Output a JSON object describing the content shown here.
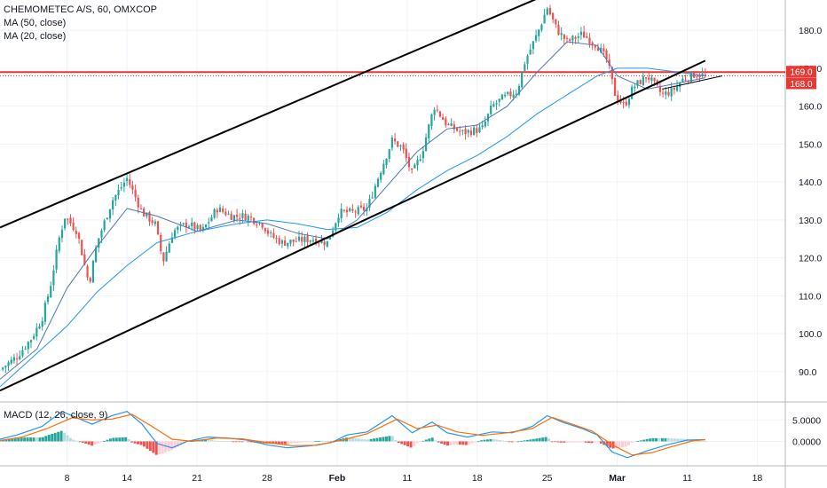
{
  "header": {
    "title": "CHEMOMETEC A/S, 60, OMXCOP",
    "indicators": [
      "MA (50, close)",
      "MA (20, close)"
    ],
    "macd_label": "MACD (12, 26, close, 9)"
  },
  "colors": {
    "up": "#26a69a",
    "down": "#ef5350",
    "ma50": "#2196f3",
    "ma20": "#4a78b8",
    "channel": "#000000",
    "level": "#e53935",
    "macd_line": "#2196f3",
    "signal_line": "#ff6d00",
    "hist_up": "#26a69a",
    "hist_up_weak": "#b2dfdb",
    "hist_down": "#ef5350",
    "hist_down_weak": "#ffcdd2"
  },
  "chart_data": {
    "type": "candlestick",
    "symbol": "CHEMOMETEC A/S",
    "interval": "60",
    "exchange": "OMXCOP",
    "x_ticks": [
      "8",
      "14",
      "21",
      "28",
      "Feb",
      "11",
      "18",
      "25",
      "Mar",
      "11",
      "18"
    ],
    "x_tick_days": [
      8,
      14,
      21,
      28,
      35,
      42,
      49,
      56,
      63,
      70,
      77
    ],
    "x_range": [
      1.3,
      79.8
    ],
    "y_ticks": [
      90.0,
      100.0,
      110.0,
      120.0,
      130.0,
      140.0,
      150.0,
      160.0,
      170.0,
      180.0
    ],
    "y_range": [
      82,
      188
    ],
    "price_path": [
      [
        1.3,
        90.5
      ],
      [
        3.0,
        94
      ],
      [
        4.5,
        99
      ],
      [
        5.5,
        104
      ],
      [
        6.3,
        112
      ],
      [
        7.2,
        125
      ],
      [
        7.8,
        131
      ],
      [
        9.0,
        127
      ],
      [
        10.2,
        113
      ],
      [
        11.0,
        124
      ],
      [
        12.5,
        135
      ],
      [
        14.0,
        141
      ],
      [
        15.5,
        132
      ],
      [
        16.8,
        129
      ],
      [
        17.6,
        119
      ],
      [
        18.6,
        127
      ],
      [
        20.0,
        129
      ],
      [
        21.5,
        127
      ],
      [
        23.0,
        133
      ],
      [
        24.5,
        131
      ],
      [
        26.0,
        131
      ],
      [
        27.5,
        129
      ],
      [
        28.3,
        126
      ],
      [
        29.5,
        124
      ],
      [
        31.0,
        124.5
      ],
      [
        32.5,
        125
      ],
      [
        34.0,
        124
      ],
      [
        35.2,
        132
      ],
      [
        36.5,
        132
      ],
      [
        38.0,
        133
      ],
      [
        39.2,
        142
      ],
      [
        40.5,
        151
      ],
      [
        41.5,
        149
      ],
      [
        42.5,
        142
      ],
      [
        43.5,
        148
      ],
      [
        44.7,
        160
      ],
      [
        46.0,
        155
      ],
      [
        47.5,
        153
      ],
      [
        49.5,
        154
      ],
      [
        50.5,
        160
      ],
      [
        51.5,
        162
      ],
      [
        53.0,
        164
      ],
      [
        53.8,
        172
      ],
      [
        55.0,
        179
      ],
      [
        56.0,
        186
      ],
      [
        57.0,
        180
      ],
      [
        58.0,
        177
      ],
      [
        59.5,
        179
      ],
      [
        61.0,
        176
      ],
      [
        62.0,
        172
      ],
      [
        62.8,
        163
      ],
      [
        63.7,
        160
      ],
      [
        64.6,
        165
      ],
      [
        66.0,
        168
      ],
      [
        67.5,
        163
      ],
      [
        68.5,
        164
      ],
      [
        69.5,
        167
      ],
      [
        70.8,
        168.5
      ],
      [
        71.8,
        168
      ]
    ],
    "ma50_path": [
      [
        1.3,
        86
      ],
      [
        8.0,
        102
      ],
      [
        11.0,
        111
      ],
      [
        14.0,
        118
      ],
      [
        17.0,
        124
      ],
      [
        21.0,
        127
      ],
      [
        25.0,
        129
      ],
      [
        28.0,
        130
      ],
      [
        31.0,
        129
      ],
      [
        34.0,
        127.5
      ],
      [
        37.0,
        128
      ],
      [
        40.0,
        132
      ],
      [
        43.0,
        138
      ],
      [
        46.0,
        143
      ],
      [
        49.0,
        147
      ],
      [
        52.0,
        152
      ],
      [
        55.0,
        158
      ],
      [
        58.0,
        163
      ],
      [
        61.0,
        168
      ],
      [
        63.0,
        170
      ],
      [
        66.0,
        170
      ],
      [
        69.0,
        169
      ],
      [
        71.8,
        168
      ]
    ],
    "ma20_path": [
      [
        1.3,
        88
      ],
      [
        5.0,
        96
      ],
      [
        8.0,
        112
      ],
      [
        11.0,
        123
      ],
      [
        14.0,
        133
      ],
      [
        17.0,
        131
      ],
      [
        21.0,
        127
      ],
      [
        25.0,
        130
      ],
      [
        28.0,
        129
      ],
      [
        31.0,
        126.5
      ],
      [
        34.0,
        125
      ],
      [
        37.0,
        130
      ],
      [
        40.0,
        139
      ],
      [
        43.0,
        148
      ],
      [
        46.0,
        154
      ],
      [
        49.0,
        155
      ],
      [
        52.0,
        160
      ],
      [
        55.0,
        169
      ],
      [
        58.0,
        177
      ],
      [
        61.0,
        176
      ],
      [
        63.0,
        168
      ],
      [
        66.0,
        164.5
      ],
      [
        69.0,
        166
      ],
      [
        71.8,
        167.5
      ]
    ],
    "channel_upper": [
      [
        1.3,
        128
      ],
      [
        61.8,
        196
      ]
    ],
    "channel_lower": [
      [
        1.3,
        85
      ],
      [
        71.8,
        172
      ]
    ],
    "support_line": [
      [
        67.5,
        164.5
      ],
      [
        73.5,
        168
      ]
    ],
    "levels": [
      {
        "value": 169.0,
        "label": "169.0"
      },
      {
        "value": 168.0,
        "label": "168.0"
      }
    ],
    "macd": {
      "y_ticks": [
        5.0,
        0.0
      ],
      "y_tick_labels": [
        "5.0000",
        "0.0000"
      ],
      "y_range": [
        -5.5,
        9.0
      ],
      "macd_path": [
        [
          1.3,
          0.5
        ],
        [
          3.0,
          1.5
        ],
        [
          5.5,
          3.5
        ],
        [
          7.5,
          7.0
        ],
        [
          9.0,
          5.5
        ],
        [
          10.5,
          4.0
        ],
        [
          12.5,
          6.0
        ],
        [
          14.0,
          7.0
        ],
        [
          15.5,
          4.0
        ],
        [
          17.0,
          -0.5
        ],
        [
          18.5,
          -1.5
        ],
        [
          20.0,
          0.0
        ],
        [
          22.0,
          1.0
        ],
        [
          24.0,
          0.8
        ],
        [
          26.0,
          0.3
        ],
        [
          28.0,
          -0.8
        ],
        [
          30.0,
          -1.5
        ],
        [
          32.5,
          -1.0
        ],
        [
          34.5,
          -0.2
        ],
        [
          36.0,
          1.5
        ],
        [
          38.0,
          2.2
        ],
        [
          40.5,
          6.0
        ],
        [
          42.5,
          2.0
        ],
        [
          44.5,
          4.5
        ],
        [
          46.0,
          2.0
        ],
        [
          48.0,
          1.0
        ],
        [
          50.5,
          2.2
        ],
        [
          52.5,
          2.0
        ],
        [
          54.5,
          3.5
        ],
        [
          56.0,
          6.0
        ],
        [
          57.5,
          4.5
        ],
        [
          59.5,
          3.0
        ],
        [
          61.0,
          1.5
        ],
        [
          62.5,
          -2.5
        ],
        [
          64.0,
          -3.8
        ],
        [
          66.0,
          -2.2
        ],
        [
          68.0,
          -0.8
        ],
        [
          70.0,
          0.3
        ],
        [
          71.8,
          0.4
        ]
      ],
      "signal_path": [
        [
          1.3,
          0.2
        ],
        [
          3.5,
          1.0
        ],
        [
          6.0,
          3.0
        ],
        [
          8.5,
          5.5
        ],
        [
          10.5,
          5.0
        ],
        [
          12.5,
          5.2
        ],
        [
          14.5,
          6.3
        ],
        [
          16.5,
          3.5
        ],
        [
          18.5,
          0.5
        ],
        [
          20.5,
          0.0
        ],
        [
          23.0,
          0.8
        ],
        [
          25.5,
          0.6
        ],
        [
          28.0,
          -0.3
        ],
        [
          30.5,
          -1.0
        ],
        [
          33.0,
          -0.9
        ],
        [
          35.5,
          0.3
        ],
        [
          38.0,
          1.8
        ],
        [
          41.0,
          5.2
        ],
        [
          43.0,
          3.0
        ],
        [
          45.0,
          3.8
        ],
        [
          47.0,
          2.2
        ],
        [
          49.5,
          1.4
        ],
        [
          52.0,
          2.0
        ],
        [
          54.5,
          3.0
        ],
        [
          56.5,
          5.6
        ],
        [
          58.5,
          4.0
        ],
        [
          60.5,
          2.4
        ],
        [
          62.5,
          -0.8
        ],
        [
          64.5,
          -3.2
        ],
        [
          66.5,
          -2.6
        ],
        [
          68.5,
          -1.2
        ],
        [
          70.5,
          0.1
        ],
        [
          71.8,
          0.4
        ]
      ]
    }
  }
}
